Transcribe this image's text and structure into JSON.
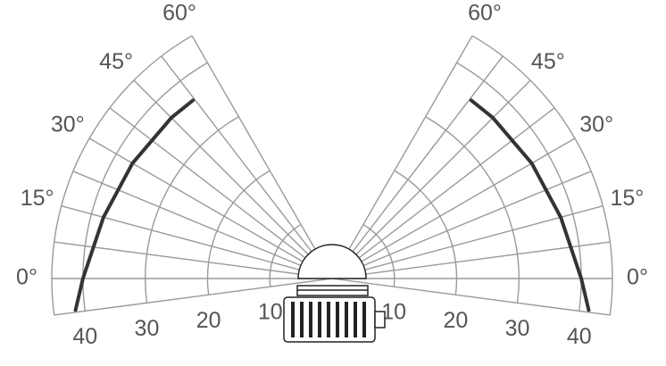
{
  "chart_data": {
    "type": "polar",
    "x": [
      -7,
      0,
      15,
      30,
      45,
      52
    ],
    "series": [
      {
        "color": "#333333",
        "values": [
          41.5,
          40,
          38,
          37,
          36.5,
          36.3
        ]
      }
    ],
    "xlim": [
      -7.5,
      60
    ],
    "xticks": [
      {
        "value": 0,
        "label": "0°"
      },
      {
        "value": 15,
        "label": "15°"
      },
      {
        "value": 30,
        "label": "30°"
      },
      {
        "value": 45,
        "label": "45°"
      },
      {
        "value": 60,
        "label": "60°"
      }
    ],
    "ylim": [
      0,
      45
    ],
    "yticks": [
      10,
      20,
      30,
      40
    ],
    "mirrored": true
  }
}
